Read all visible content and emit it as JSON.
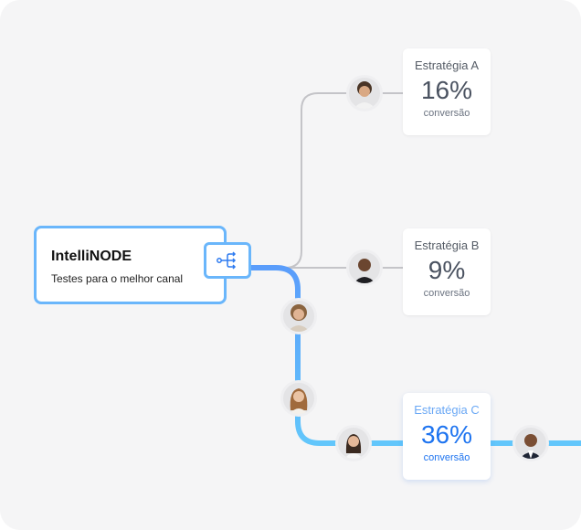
{
  "node": {
    "title": "IntelliNODE",
    "subtitle": "Testes para o melhor canal",
    "icon": "split-flow-icon"
  },
  "strategies": [
    {
      "name": "Estratégia A",
      "value": "16%",
      "label": "conversão"
    },
    {
      "name": "Estratégia B",
      "value": "9%",
      "label": "conversão"
    },
    {
      "name": "Estratégia C",
      "value": "36%",
      "label": "conversão",
      "highlighted": true
    }
  ],
  "colors": {
    "accent": "#1e74f0",
    "path_active": "#5aa8fb",
    "path_inactive": "#c4c4c8",
    "border": "#6ab6fb"
  }
}
